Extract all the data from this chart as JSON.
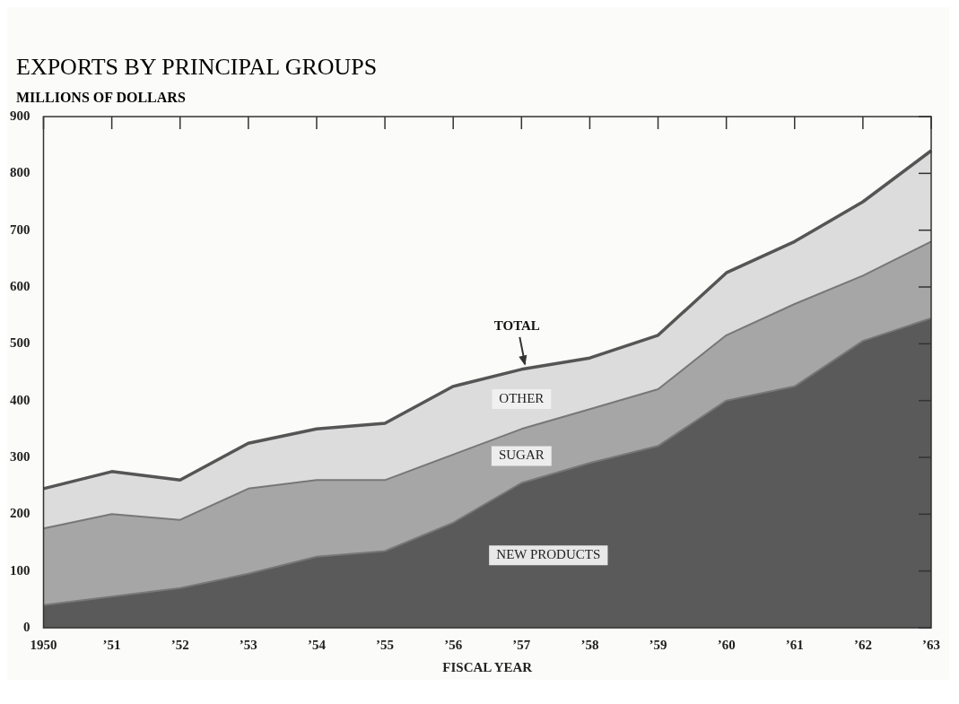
{
  "chart_data": {
    "type": "area",
    "title": "EXPORTS BY PRINCIPAL GROUPS",
    "ylabel": "MILLIONS OF DOLLARS",
    "xlabel": "FISCAL YEAR",
    "stacked": true,
    "categories": [
      "1950",
      "’51",
      "’52",
      "’53",
      "’54",
      "’55",
      "’56",
      "’57",
      "’58",
      "’59",
      "’60",
      "’61",
      "’62",
      "’63"
    ],
    "series": [
      {
        "name": "NEW PRODUCTS",
        "color": "#5a5a5a",
        "values": [
          40,
          55,
          70,
          95,
          125,
          135,
          185,
          255,
          290,
          320,
          400,
          425,
          505,
          545
        ]
      },
      {
        "name": "SUGAR",
        "color": "#a6a6a6",
        "values": [
          135,
          145,
          120,
          150,
          135,
          125,
          120,
          95,
          95,
          100,
          115,
          145,
          115,
          135
        ]
      },
      {
        "name": "OTHER",
        "color": "#dcdcdc",
        "values": [
          70,
          75,
          70,
          80,
          90,
          100,
          120,
          105,
          90,
          95,
          110,
          110,
          130,
          160
        ]
      }
    ],
    "ylim": [
      0,
      900
    ],
    "yticks": [
      0,
      100,
      200,
      300,
      400,
      500,
      600,
      700,
      800,
      900
    ],
    "grid": false,
    "legend": false,
    "annotations": [
      {
        "text": "TOTAL",
        "x": "’57",
        "y": 455
      }
    ]
  }
}
